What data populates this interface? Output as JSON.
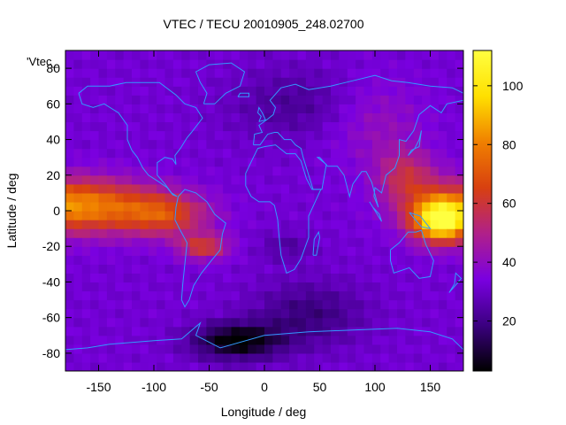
{
  "chart_data": {
    "type": "heatmap",
    "title": "VTEC / TECU 20010905_248.02700",
    "xlabel": "Longitude / deg",
    "ylabel": "Latitude / deg",
    "key_label": "'Vtec_",
    "xlim": [
      -180,
      180
    ],
    "ylim": [
      -90,
      90
    ],
    "x_ticks": [
      -150,
      -100,
      -50,
      0,
      50,
      100,
      150
    ],
    "y_ticks": [
      -80,
      -60,
      -40,
      -20,
      0,
      20,
      40,
      60,
      80
    ],
    "colorbar": {
      "range": [
        3,
        112
      ],
      "ticks": [
        20,
        40,
        60,
        80,
        100
      ],
      "colors": [
        "#000000",
        "#3b0080",
        "#7a00e0",
        "#b0208a",
        "#d84010",
        "#f08000",
        "#ffe000",
        "#ffff40"
      ]
    },
    "grid": false,
    "coastline_color": "#3399ff",
    "grid_resolution_deg": {
      "lon": 7.5,
      "lat": 5
    },
    "features": [
      {
        "name": "equatorial anomaly (pacific)",
        "lon": -165,
        "lat": 5,
        "value": 85
      },
      {
        "name": "equatorial anomaly (south america)",
        "lon": -80,
        "lat": 0,
        "value": 68
      },
      {
        "name": "southern crest (south america)",
        "lon": -55,
        "lat": -22,
        "value": 60
      },
      {
        "name": "western pacific maximum",
        "lon": 150,
        "lat": -5,
        "value": 110
      },
      {
        "name": "antarctic minimum",
        "lon": -25,
        "lat": -72,
        "value": 4
      }
    ],
    "background_value": 32
  }
}
